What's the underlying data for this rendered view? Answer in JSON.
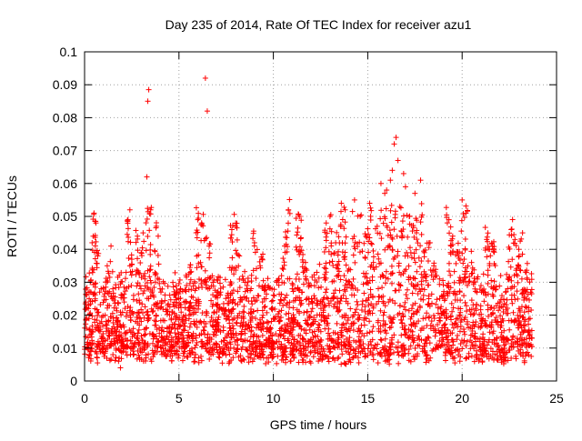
{
  "chart_data": {
    "type": "scatter",
    "title": "Day 235 of 2014, Rate Of TEC Index for receiver azu1",
    "xlabel": "GPS time / hours",
    "ylabel": "ROTI / TECUs",
    "xlim": [
      0,
      25
    ],
    "ylim": [
      0,
      0.1
    ],
    "xticks": [
      0,
      5,
      10,
      15,
      20,
      25
    ],
    "xtick_labels": [
      "0",
      "5",
      "10",
      "15",
      "20",
      "25"
    ],
    "yticks": [
      0,
      0.01,
      0.02,
      0.03,
      0.04,
      0.05,
      0.06,
      0.07,
      0.08,
      0.09,
      0.1
    ],
    "ytick_labels": [
      "0",
      "0.01",
      "0.02",
      "0.03",
      "0.04",
      "0.05",
      "0.06",
      "0.07",
      "0.08",
      "0.09",
      "0.1"
    ],
    "grid": true,
    "marker": "+",
    "color": "#ff0000",
    "series": [
      {
        "name": "ROTI",
        "note": "dense point cloud 0-23.7 h, bulk 0.005-0.045 TECU, representative points listed",
        "points": [
          [
            0.1,
            0.016
          ],
          [
            0.2,
            0.022
          ],
          [
            0.3,
            0.03
          ],
          [
            0.4,
            0.042
          ],
          [
            0.5,
            0.051
          ],
          [
            0.6,
            0.048
          ],
          [
            0.7,
            0.038
          ],
          [
            0.8,
            0.027
          ],
          [
            0.9,
            0.018
          ],
          [
            1.0,
            0.012
          ],
          [
            1.1,
            0.009
          ],
          [
            1.2,
            0.035
          ],
          [
            1.4,
            0.041
          ],
          [
            1.5,
            0.028
          ],
          [
            1.7,
            0.015
          ],
          [
            1.8,
            0.006
          ],
          [
            1.9,
            0.004
          ],
          [
            2.0,
            0.011
          ],
          [
            2.1,
            0.024
          ],
          [
            2.2,
            0.033
          ],
          [
            2.3,
            0.049
          ],
          [
            2.4,
            0.052
          ],
          [
            2.5,
            0.037
          ],
          [
            2.6,
            0.026
          ],
          [
            2.8,
            0.044
          ],
          [
            2.9,
            0.017
          ],
          [
            3.0,
            0.039
          ],
          [
            3.1,
            0.045
          ],
          [
            3.2,
            0.031
          ],
          [
            3.3,
            0.062
          ],
          [
            3.35,
            0.085
          ],
          [
            3.4,
            0.0885
          ],
          [
            3.5,
            0.052
          ],
          [
            3.6,
            0.021
          ],
          [
            3.8,
            0.047
          ],
          [
            3.9,
            0.044
          ],
          [
            4.0,
            0.028
          ],
          [
            4.2,
            0.013
          ],
          [
            4.4,
            0.023
          ],
          [
            4.6,
            0.019
          ],
          [
            4.8,
            0.016
          ],
          [
            5.0,
            0.025
          ],
          [
            5.2,
            0.018
          ],
          [
            5.4,
            0.029
          ],
          [
            5.6,
            0.033
          ],
          [
            5.8,
            0.022
          ],
          [
            6.0,
            0.049
          ],
          [
            6.2,
            0.048
          ],
          [
            6.4,
            0.092
          ],
          [
            6.5,
            0.082
          ],
          [
            6.6,
            0.041
          ],
          [
            6.8,
            0.03
          ],
          [
            7.0,
            0.021
          ],
          [
            7.2,
            0.027
          ],
          [
            7.5,
            0.019
          ],
          [
            7.8,
            0.046
          ],
          [
            8.0,
            0.047
          ],
          [
            8.2,
            0.038
          ],
          [
            8.4,
            0.031
          ],
          [
            8.7,
            0.017
          ],
          [
            9.0,
            0.042
          ],
          [
            9.3,
            0.035
          ],
          [
            9.6,
            0.025
          ],
          [
            10.0,
            0.019
          ],
          [
            10.3,
            0.031
          ],
          [
            10.6,
            0.041
          ],
          [
            10.8,
            0.052
          ],
          [
            11.0,
            0.028
          ],
          [
            11.4,
            0.05
          ],
          [
            11.7,
            0.036
          ],
          [
            12.0,
            0.029
          ],
          [
            12.3,
            0.033
          ],
          [
            12.6,
            0.024
          ],
          [
            12.8,
            0.048
          ],
          [
            13.0,
            0.05
          ],
          [
            13.3,
            0.042
          ],
          [
            13.6,
            0.054
          ],
          [
            13.8,
            0.052
          ],
          [
            14.0,
            0.034
          ],
          [
            14.3,
            0.055
          ],
          [
            14.6,
            0.05
          ],
          [
            14.9,
            0.044
          ],
          [
            15.1,
            0.054
          ],
          [
            15.3,
            0.036
          ],
          [
            15.5,
            0.047
          ],
          [
            15.7,
            0.06
          ],
          [
            15.9,
            0.057
          ],
          [
            16.0,
            0.058
          ],
          [
            16.2,
            0.061
          ],
          [
            16.3,
            0.064
          ],
          [
            16.4,
            0.072
          ],
          [
            16.5,
            0.074
          ],
          [
            16.6,
            0.067
          ],
          [
            16.7,
            0.053
          ],
          [
            16.9,
            0.063
          ],
          [
            17.0,
            0.059
          ],
          [
            17.2,
            0.05
          ],
          [
            17.5,
            0.057
          ],
          [
            17.8,
            0.061
          ],
          [
            18.0,
            0.039
          ],
          [
            18.3,
            0.042
          ],
          [
            18.5,
            0.035
          ],
          [
            18.8,
            0.031
          ],
          [
            19.0,
            0.026
          ],
          [
            19.3,
            0.049
          ],
          [
            19.5,
            0.044
          ],
          [
            19.8,
            0.038
          ],
          [
            20.0,
            0.055
          ],
          [
            20.2,
            0.051
          ],
          [
            20.5,
            0.036
          ],
          [
            20.8,
            0.031
          ],
          [
            21.0,
            0.029
          ],
          [
            21.3,
            0.043
          ],
          [
            21.6,
            0.041
          ],
          [
            22.0,
            0.024
          ],
          [
            22.3,
            0.027
          ],
          [
            22.6,
            0.046
          ],
          [
            22.8,
            0.043
          ],
          [
            23.0,
            0.04
          ],
          [
            23.2,
            0.045
          ],
          [
            23.4,
            0.033
          ],
          [
            23.6,
            0.019
          ],
          [
            23.7,
            0.013
          ]
        ]
      }
    ]
  }
}
